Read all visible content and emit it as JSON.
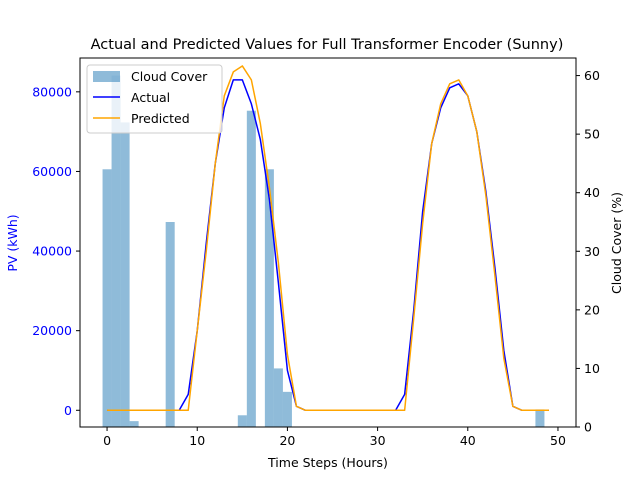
{
  "chart_data": {
    "type": "bar+line",
    "title": "Actual and Predicted Values for Full Transformer Encoder (Sunny)",
    "xlabel": "Time Steps (Hours)",
    "ylabel_left": "PV (kWh)",
    "ylabel_right": "Cloud Cover (%)",
    "xlim": [
      -3,
      52
    ],
    "ylim_left": [
      -4200,
      88500
    ],
    "ylim_right": [
      0,
      63
    ],
    "xticks": [
      0,
      10,
      20,
      30,
      40,
      50
    ],
    "yticks_left": [
      0,
      20000,
      40000,
      60000,
      80000
    ],
    "yticks_right": [
      0,
      10,
      20,
      30,
      40,
      50,
      60
    ],
    "grid": false,
    "legend_position": "top-left",
    "colors": {
      "cloud": "#1f77b4",
      "actual": "#0000ff",
      "predicted": "#ffa500",
      "left_axis": "#0000ff"
    },
    "series": [
      {
        "name": "Cloud Cover",
        "kind": "bar",
        "axis": "right",
        "x": [
          0,
          1,
          2,
          3,
          7,
          15,
          16,
          18,
          19,
          20,
          48
        ],
        "values": [
          44,
          60,
          52,
          1,
          35,
          2,
          54,
          44,
          10,
          6,
          3
        ]
      },
      {
        "name": "Actual",
        "kind": "line",
        "axis": "left",
        "x": [
          0,
          1,
          2,
          3,
          4,
          5,
          6,
          7,
          8,
          9,
          10,
          11,
          12,
          13,
          14,
          15,
          16,
          17,
          18,
          19,
          20,
          21,
          22,
          23,
          24,
          25,
          26,
          27,
          28,
          29,
          30,
          31,
          32,
          33,
          34,
          35,
          36,
          37,
          38,
          39,
          40,
          41,
          42,
          43,
          44,
          45,
          46,
          47,
          48,
          49
        ],
        "values": [
          0,
          0,
          0,
          0,
          0,
          0,
          0,
          0,
          0,
          4000,
          20000,
          42000,
          62000,
          76000,
          83000,
          83000,
          77000,
          68000,
          53000,
          32000,
          10000,
          1000,
          0,
          0,
          0,
          0,
          0,
          0,
          0,
          0,
          0,
          0,
          0,
          4000,
          25000,
          50000,
          67000,
          76000,
          81000,
          82000,
          79000,
          70000,
          55000,
          36000,
          15000,
          1000,
          0,
          0,
          0,
          0
        ]
      },
      {
        "name": "Predicted",
        "kind": "line",
        "axis": "left",
        "x": [
          0,
          1,
          2,
          3,
          4,
          5,
          6,
          7,
          8,
          9,
          10,
          11,
          12,
          13,
          14,
          15,
          16,
          17,
          18,
          19,
          20,
          21,
          22,
          23,
          24,
          25,
          26,
          27,
          28,
          29,
          30,
          31,
          32,
          33,
          34,
          35,
          36,
          37,
          38,
          39,
          40,
          41,
          42,
          43,
          44,
          45,
          46,
          47,
          48,
          49
        ],
        "values": [
          0,
          0,
          0,
          0,
          0,
          0,
          0,
          0,
          0,
          0,
          20000,
          40000,
          62000,
          79000,
          85000,
          86500,
          83000,
          72000,
          56000,
          37000,
          14000,
          1000,
          0,
          0,
          0,
          0,
          0,
          0,
          0,
          0,
          0,
          0,
          0,
          0,
          23000,
          47000,
          67000,
          77000,
          82000,
          83000,
          79000,
          70000,
          54000,
          34000,
          13000,
          1000,
          0,
          0,
          0,
          0
        ]
      }
    ]
  }
}
